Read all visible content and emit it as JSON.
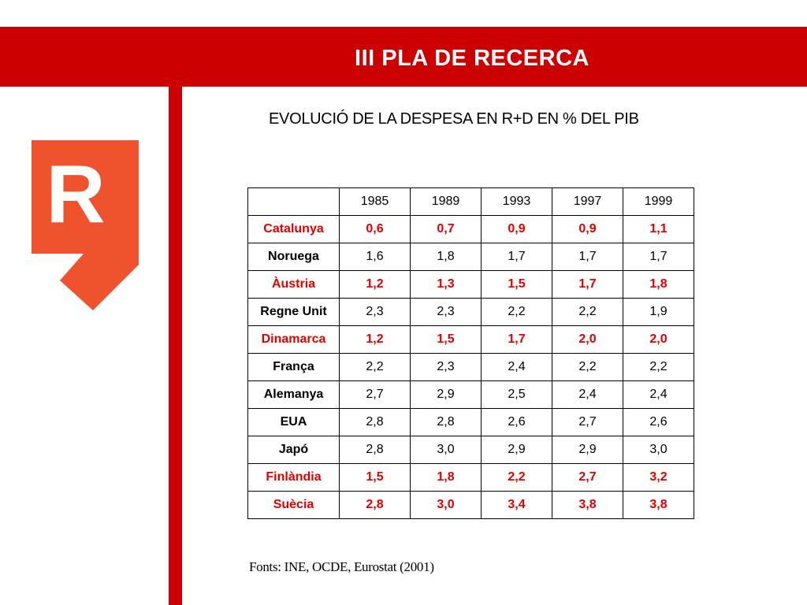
{
  "header": {
    "title": "III PLA DE RECERCA"
  },
  "logo": {
    "letter": "R",
    "color": "#f0522d"
  },
  "subtitle": "EVOLUCIÓ DE LA DESPESA EN R+D EN % DEL PIB",
  "table": {
    "years": [
      "1985",
      "1989",
      "1993",
      "1997",
      "1999"
    ],
    "rows": [
      {
        "country": "Catalunya",
        "values": [
          "0,6",
          "0,7",
          "0,9",
          "0,9",
          "1,1"
        ],
        "highlight": true
      },
      {
        "country": "Noruega",
        "values": [
          "1,6",
          "1,8",
          "1,7",
          "1,7",
          "1,7"
        ],
        "highlight": false
      },
      {
        "country": "Àustria",
        "values": [
          "1,2",
          "1,3",
          "1,5",
          "1,7",
          "1,8"
        ],
        "highlight": true
      },
      {
        "country": "Regne Unit",
        "values": [
          "2,3",
          "2,3",
          "2,2",
          "2,2",
          "1,9"
        ],
        "highlight": false
      },
      {
        "country": "Dinamarca",
        "values": [
          "1,2",
          "1,5",
          "1,7",
          "2,0",
          "2,0"
        ],
        "highlight": true
      },
      {
        "country": "França",
        "values": [
          "2,2",
          "2,3",
          "2,4",
          "2,2",
          "2,2"
        ],
        "highlight": false
      },
      {
        "country": "Alemanya",
        "values": [
          "2,7",
          "2,9",
          "2,5",
          "2,4",
          "2,4"
        ],
        "highlight": false
      },
      {
        "country": "EUA",
        "values": [
          "2,8",
          "2,8",
          "2,6",
          "2,7",
          "2,6"
        ],
        "highlight": false
      },
      {
        "country": "Japó",
        "values": [
          "2,8",
          "3,0",
          "2,9",
          "2,9",
          "3,0"
        ],
        "highlight": false
      },
      {
        "country": "Finlàndia",
        "values": [
          "1,5",
          "1,8",
          "2,2",
          "2,7",
          "3,2"
        ],
        "highlight": true
      },
      {
        "country": "Suècia",
        "values": [
          "2,8",
          "3,0",
          "3,4",
          "3,8",
          "3,8"
        ],
        "highlight": true
      }
    ]
  },
  "sources": "Fonts: INE, OCDE, Eurostat (2001)",
  "colors": {
    "brand_red": "#cc0000",
    "highlight_red": "#e00000",
    "logo_orange": "#f0522d"
  }
}
